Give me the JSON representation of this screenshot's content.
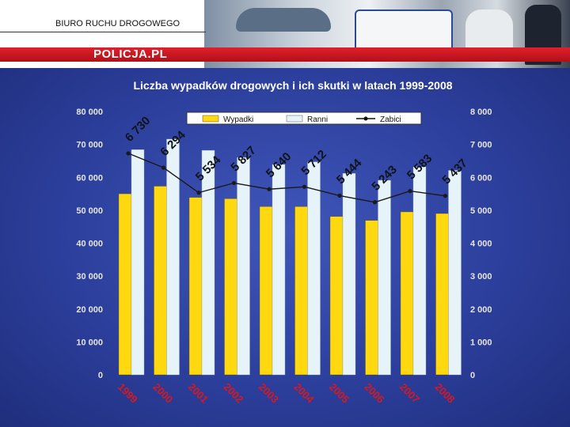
{
  "header": {
    "org_title": "BIURO RUCHU DROGOWEGO",
    "brand": "POLICJA.PL"
  },
  "colors": {
    "bar_wypadki": "#ffd80f",
    "bar_ranni": "#e6f3f8",
    "line_zabici": "#1a1a1a",
    "label_color": "#e6e6e6",
    "background": "#2c3f9c",
    "brand_red": "#d01820"
  },
  "chart_data": {
    "type": "bar",
    "title": "Liczba wypadków drogowych i ich skutki w latach 1999-2008",
    "categories": [
      "1999",
      "2000",
      "2001",
      "2002",
      "2003",
      "2004",
      "2005",
      "2006",
      "2007",
      "2008"
    ],
    "series": [
      {
        "name": "Wypadki",
        "type": "bar",
        "axis": "left",
        "values": [
          55000,
          57300,
          53900,
          53500,
          51100,
          51100,
          48100,
          46900,
          49500,
          49000
        ]
      },
      {
        "name": "Ranni",
        "type": "bar",
        "axis": "left",
        "values": [
          68400,
          71600,
          68200,
          66000,
          63900,
          64700,
          61200,
          59100,
          63200,
          62100
        ]
      },
      {
        "name": "Zabici",
        "type": "line",
        "axis": "right",
        "values": [
          6730,
          6294,
          5534,
          5827,
          5640,
          5712,
          5444,
          5243,
          5583,
          5437
        ],
        "labels": [
          "6 730",
          "6 294",
          "5 534",
          "5 827",
          "5 640",
          "5 712",
          "5 444",
          "5 243",
          "5 583",
          "5 437"
        ]
      }
    ],
    "left_axis": {
      "ylim": [
        0,
        80000
      ],
      "ticks": [
        0,
        10000,
        20000,
        30000,
        40000,
        50000,
        60000,
        70000,
        80000
      ],
      "tick_labels": [
        "0",
        "10 000",
        "20 000",
        "30 000",
        "40 000",
        "50 000",
        "60 000",
        "70 000",
        "80 000"
      ]
    },
    "right_axis": {
      "ylim": [
        0,
        8000
      ],
      "ticks": [
        0,
        1000,
        2000,
        3000,
        4000,
        5000,
        6000,
        7000,
        8000
      ],
      "tick_labels": [
        "0",
        "1 000",
        "2 000",
        "3 000",
        "4 000",
        "5 000",
        "6 000",
        "7 000",
        "8 000"
      ]
    },
    "legend": [
      "Wypadki",
      "Ranni",
      "Zabici"
    ],
    "legend_position": "top-center",
    "grid": false
  }
}
